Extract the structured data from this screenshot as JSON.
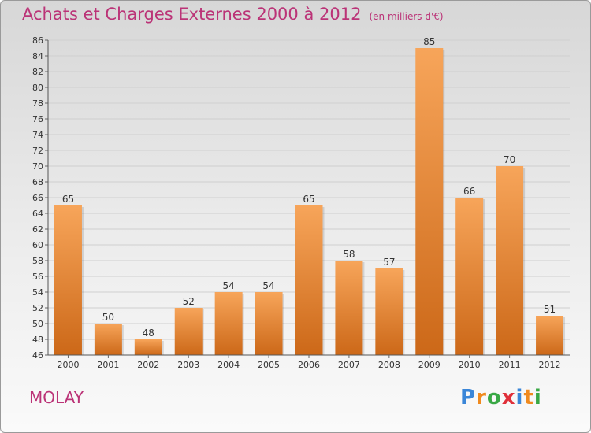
{
  "title": "Achats et Charges Externes 2000 à 2012",
  "subtitle": "(en milliers d'€)",
  "commune": "MOLAY",
  "logo": {
    "text": "Proxiti",
    "letters": [
      "P",
      "r",
      "o",
      "x",
      "i",
      "t",
      "i"
    ],
    "colors": [
      "#3a86d8",
      "#f08a1e",
      "#39a845",
      "#e0303a",
      "#3a86d8",
      "#f08a1e",
      "#39a845"
    ]
  },
  "colors": {
    "title": "#bb3377",
    "bar_top": "#f7a55a",
    "bar_bottom": "#cc6818",
    "axis_text": "#333333"
  },
  "chart_data": {
    "type": "bar",
    "title": "Achats et Charges Externes 2000 à 2012",
    "subtitle": "(en milliers d'€)",
    "categories": [
      "2000",
      "2001",
      "2002",
      "2003",
      "2004",
      "2005",
      "2006",
      "2007",
      "2008",
      "2009",
      "2010",
      "2011",
      "2012"
    ],
    "values": [
      65,
      50,
      48,
      52,
      54,
      54,
      65,
      58,
      57,
      85,
      66,
      70,
      51
    ],
    "ylim": [
      46,
      86
    ],
    "ytick_step": 2,
    "grid": true,
    "data_labels": true
  }
}
